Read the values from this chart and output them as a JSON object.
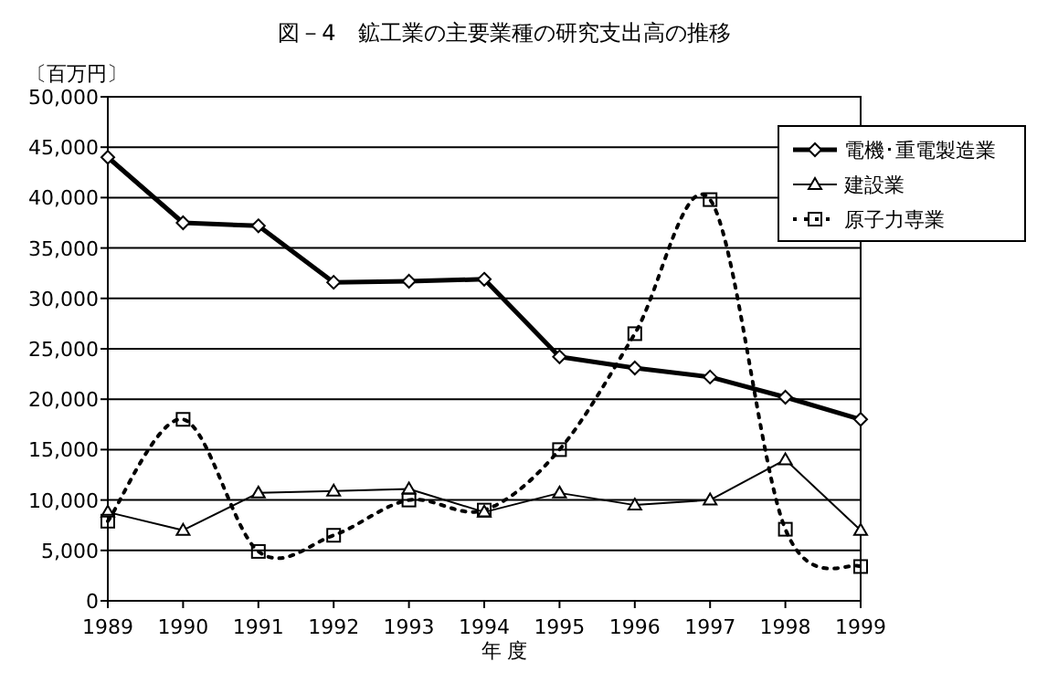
{
  "chart_data": {
    "type": "line",
    "title": "図－4　鉱工業の主要業種の研究支出高の推移",
    "ylabel": "〔百万円〕",
    "xlabel": "年 度",
    "x": [
      1989,
      1990,
      1991,
      1992,
      1993,
      1994,
      1995,
      1996,
      1997,
      1998,
      1999
    ],
    "xlim": [
      1989,
      1999
    ],
    "xticks": [
      1989,
      1990,
      1991,
      1992,
      1993,
      1994,
      1995,
      1996,
      1997,
      1998,
      1999
    ],
    "ylim": [
      0,
      50000
    ],
    "yticks": [
      {
        "value": 0,
        "label": "0"
      },
      {
        "value": 5000,
        "label": "5,000"
      },
      {
        "value": 10000,
        "label": "10,000"
      },
      {
        "value": 15000,
        "label": "15,000"
      },
      {
        "value": 20000,
        "label": "20,000"
      },
      {
        "value": 25000,
        "label": "25,000"
      },
      {
        "value": 30000,
        "label": "30,000"
      },
      {
        "value": 35000,
        "label": "35,000"
      },
      {
        "value": 40000,
        "label": "40,000"
      },
      {
        "value": 45000,
        "label": "45,000"
      },
      {
        "value": 50000,
        "label": "50,000"
      }
    ],
    "grid": "y",
    "legend": "top right",
    "series": [
      {
        "name": "電機･重電製造業",
        "color": "#000000",
        "marker": "diamond",
        "line_style": "solid",
        "values": [
          44000,
          37500,
          37200,
          31600,
          31700,
          31900,
          24200,
          23100,
          22200,
          20200,
          18000
        ]
      },
      {
        "name": "建設業",
        "color": "#000000",
        "marker": "triangle",
        "line_style": "solid",
        "values": [
          8800,
          7000,
          10700,
          10900,
          11100,
          8800,
          10700,
          9500,
          10000,
          14000,
          7000
        ]
      },
      {
        "name": "原子力専業",
        "color": "#000000",
        "marker": "square",
        "line_style": "dotted",
        "values": [
          7900,
          18000,
          4900,
          6500,
          10000,
          9000,
          15000,
          26500,
          39800,
          7100,
          3400
        ]
      }
    ]
  }
}
